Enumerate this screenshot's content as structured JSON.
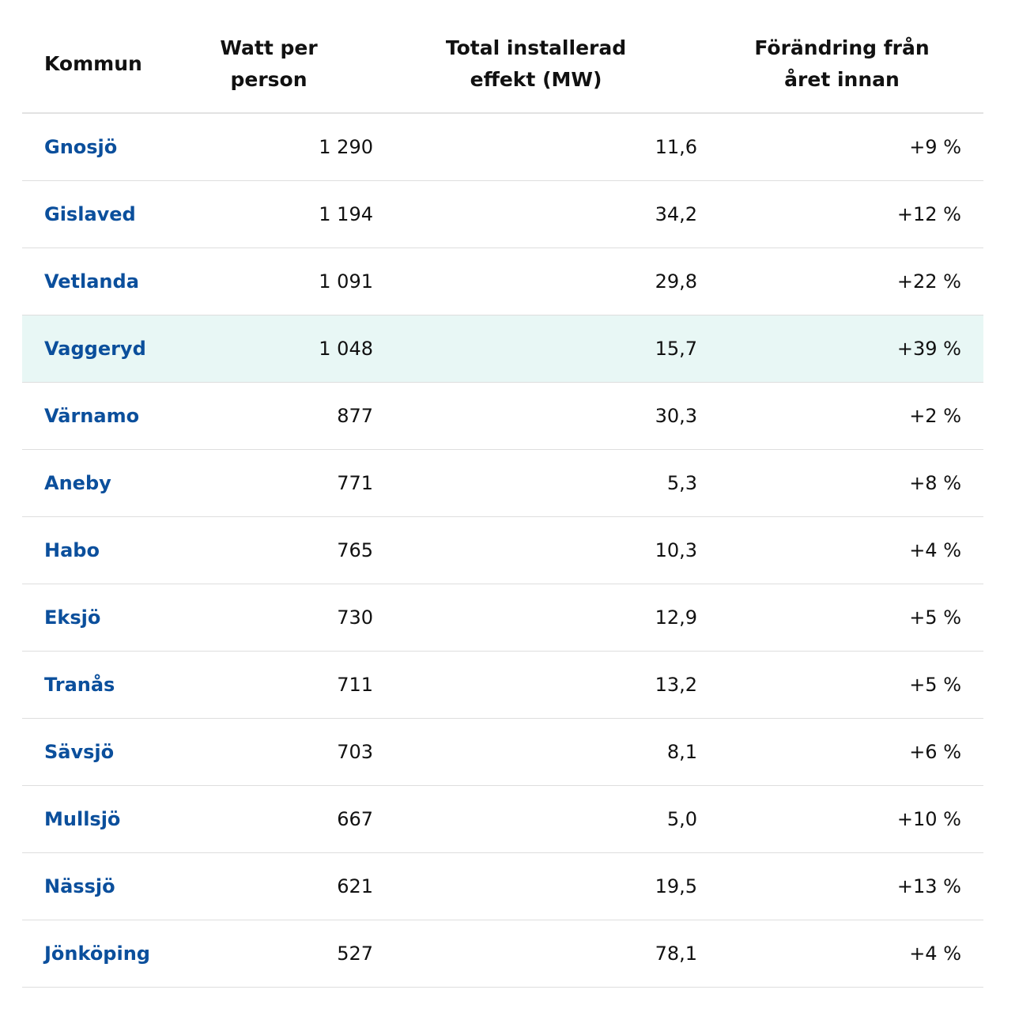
{
  "table": {
    "headers": {
      "kommun": "Kommun",
      "watt": "Watt per person",
      "mw": "Total installerad effekt (MW)",
      "change": "Förändring från året innan"
    },
    "highlight_color": "#e8f7f5",
    "link_color": "#0b4f9c",
    "rows": [
      {
        "kommun": "Gnosjö",
        "watt": "1 290",
        "mw": "11,6",
        "change": "+9 %"
      },
      {
        "kommun": "Gislaved",
        "watt": "1 194",
        "mw": "34,2",
        "change": "+12 %"
      },
      {
        "kommun": "Vetlanda",
        "watt": "1 091",
        "mw": "29,8",
        "change": "+22 %"
      },
      {
        "kommun": "Vaggeryd",
        "watt": "1 048",
        "mw": "15,7",
        "change": "+39 %",
        "highlighted": true
      },
      {
        "kommun": "Värnamo",
        "watt": "877",
        "mw": "30,3",
        "change": "+2 %"
      },
      {
        "kommun": "Aneby",
        "watt": "771",
        "mw": "5,3",
        "change": "+8 %"
      },
      {
        "kommun": "Habo",
        "watt": "765",
        "mw": "10,3",
        "change": "+4 %"
      },
      {
        "kommun": "Eksjö",
        "watt": "730",
        "mw": "12,9",
        "change": "+5 %"
      },
      {
        "kommun": "Tranås",
        "watt": "711",
        "mw": "13,2",
        "change": "+5 %"
      },
      {
        "kommun": "Sävsjö",
        "watt": "703",
        "mw": "8,1",
        "change": "+6 %"
      },
      {
        "kommun": "Mullsjö",
        "watt": "667",
        "mw": "5,0",
        "change": "+10 %"
      },
      {
        "kommun": "Nässjö",
        "watt": "621",
        "mw": "19,5",
        "change": "+13 %"
      },
      {
        "kommun": "Jönköping",
        "watt": "527",
        "mw": "78,1",
        "change": "+4 %"
      }
    ]
  }
}
